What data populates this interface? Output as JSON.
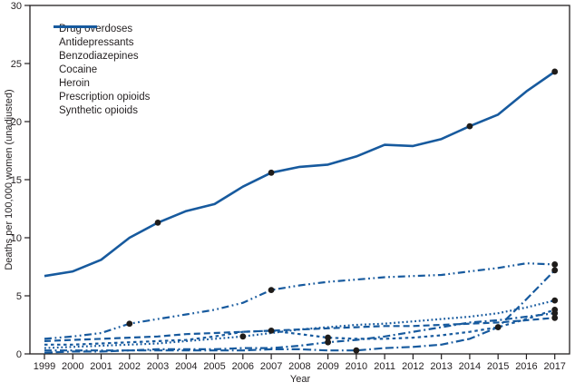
{
  "chart_data": {
    "type": "line",
    "title": "",
    "xlabel": "Year",
    "ylabel": "Deaths per 100,000 women (unadjusted)",
    "ylim": [
      0,
      30
    ],
    "yticks": [
      0,
      5,
      10,
      15,
      20,
      25,
      30
    ],
    "x": [
      1999,
      2000,
      2001,
      2002,
      2003,
      2004,
      2005,
      2006,
      2007,
      2008,
      2009,
      2010,
      2011,
      2012,
      2013,
      2014,
      2015,
      2016,
      2017
    ],
    "grid": false,
    "legend_position": "top-left",
    "colors": {
      "line": "#175a9e",
      "marker": "#1f1c1a",
      "axis": "#231f20",
      "text": "#231f20",
      "background": "#ffffff"
    },
    "series": [
      {
        "id": "drug-overdoses",
        "name": "Drug overdoses",
        "dash": "",
        "width": 2.6,
        "legend_len": 44,
        "values": [
          6.7,
          7.1,
          8.1,
          10.0,
          11.3,
          12.3,
          12.9,
          14.4,
          15.6,
          16.1,
          16.3,
          17.0,
          18.0,
          17.9,
          18.5,
          19.6,
          20.6,
          22.6,
          24.3
        ],
        "marker_years": [
          2003,
          2007,
          2014,
          2017
        ]
      },
      {
        "id": "antidepressants",
        "name": "Antidepressants",
        "dash": "7 4",
        "width": 2.2,
        "legend_len": 38,
        "values": [
          1.1,
          1.2,
          1.3,
          1.4,
          1.5,
          1.7,
          1.8,
          1.9,
          2.0,
          2.1,
          2.2,
          2.3,
          2.4,
          2.4,
          2.5,
          2.6,
          2.7,
          2.9,
          3.1
        ],
        "marker_years": [
          2017
        ]
      },
      {
        "id": "benzodiazepines",
        "name": "Benzodiazepines",
        "dash": "1.8 2.8",
        "width": 2.2,
        "legend_len": 20,
        "values": [
          0.5,
          0.6,
          0.7,
          0.8,
          0.9,
          1.1,
          1.3,
          1.5,
          1.8,
          2.1,
          2.3,
          2.5,
          2.6,
          2.8,
          3.0,
          3.2,
          3.5,
          4.0,
          4.6
        ],
        "marker_years": [
          2006,
          2017
        ]
      },
      {
        "id": "cocaine",
        "name": "Cocaine",
        "dash": "3.5 3.5",
        "width": 2.2,
        "legend_len": 24,
        "values": [
          0.8,
          0.8,
          0.9,
          1.0,
          1.1,
          1.2,
          1.5,
          1.9,
          2.0,
          1.7,
          1.4,
          1.3,
          1.3,
          1.4,
          1.6,
          1.9,
          2.3,
          3.0,
          3.8
        ],
        "marker_years": [
          2007,
          2009,
          2017
        ]
      },
      {
        "id": "heroin",
        "name": "Heroin",
        "dash": "8 3.5 2 3.5",
        "width": 2.2,
        "legend_len": 28,
        "values": [
          0.3,
          0.3,
          0.3,
          0.3,
          0.4,
          0.4,
          0.4,
          0.5,
          0.5,
          0.7,
          1.0,
          1.2,
          1.5,
          1.9,
          2.3,
          2.7,
          2.9,
          3.2,
          3.5
        ],
        "marker_years": [
          2009,
          2017
        ]
      },
      {
        "id": "prescription-opioids",
        "name": "Prescription opioids",
        "dash": "8 3.5 1.8 3.5 1.8 3.5",
        "width": 2.2,
        "legend_len": 38,
        "values": [
          1.3,
          1.5,
          1.8,
          2.6,
          3.0,
          3.4,
          3.8,
          4.4,
          5.5,
          5.9,
          6.2,
          6.4,
          6.6,
          6.7,
          6.8,
          7.1,
          7.4,
          7.8,
          7.7
        ],
        "marker_years": [
          2002,
          2007,
          2017
        ]
      },
      {
        "id": "synthetic-opioids",
        "name": "Synthetic opioids",
        "dash": "9 3.5 9 3.5 1.8 3.5",
        "width": 2.2,
        "legend_len": 48,
        "values": [
          0.1,
          0.2,
          0.2,
          0.3,
          0.3,
          0.3,
          0.3,
          0.3,
          0.4,
          0.4,
          0.3,
          0.3,
          0.5,
          0.6,
          0.8,
          1.3,
          2.3,
          4.7,
          7.2
        ],
        "marker_years": [
          2010,
          2015,
          2017
        ]
      }
    ]
  }
}
